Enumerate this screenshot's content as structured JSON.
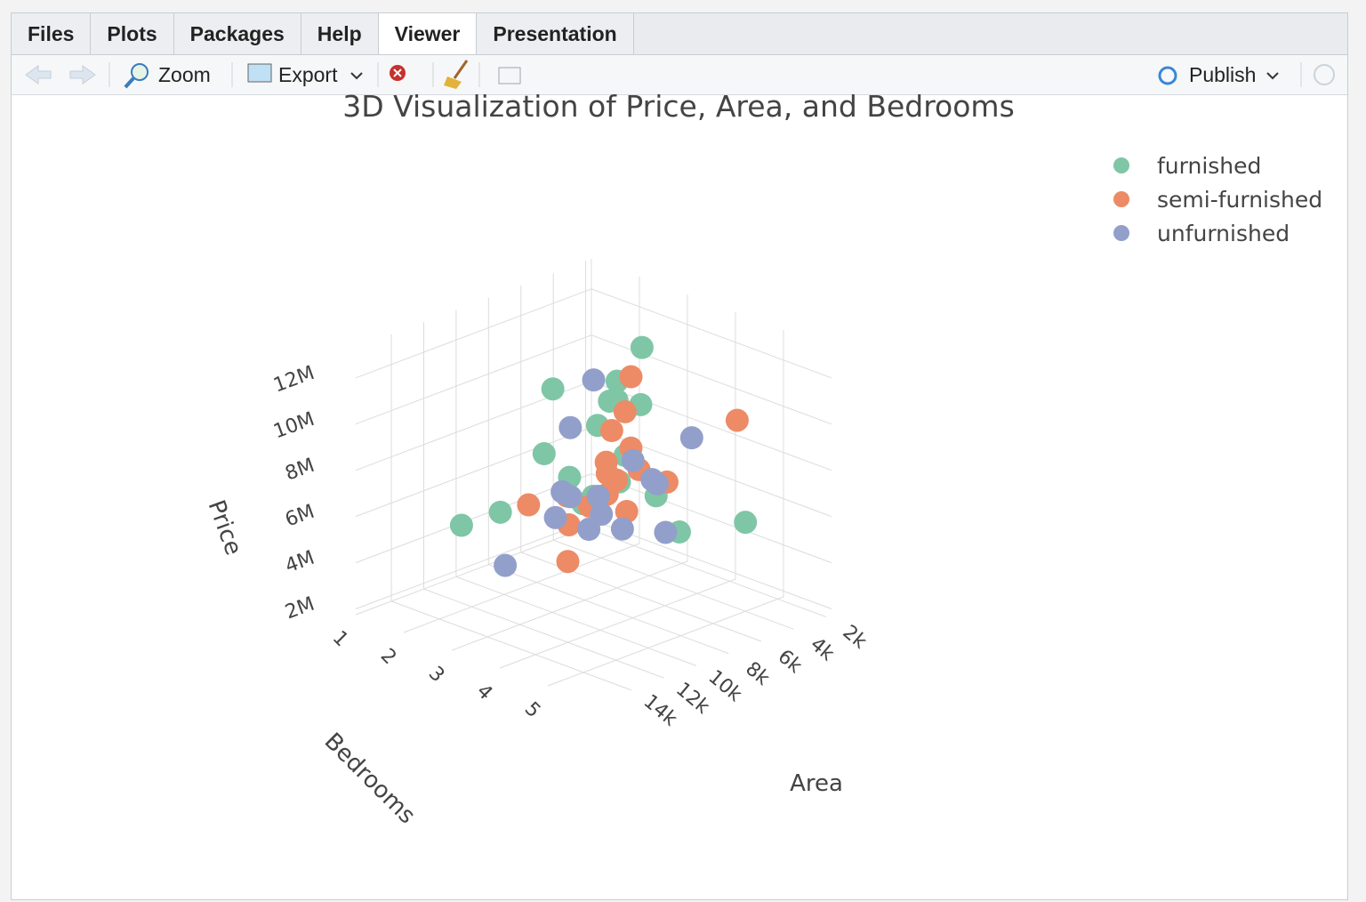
{
  "tabs": [
    "Files",
    "Plots",
    "Packages",
    "Help",
    "Viewer",
    "Presentation"
  ],
  "toolbar": {
    "zoom": "Zoom",
    "export": "Export",
    "publish": "Publish"
  },
  "chart_data": {
    "type": "scatter3d",
    "title": "3D Visualization of Price, Area, and Bedrooms",
    "xaxis_title": "Area",
    "yaxis_title": "Bedrooms",
    "zaxis_title": "Price",
    "xlim": [
      1650,
      16200
    ],
    "ylim": [
      1,
      6
    ],
    "zlim": [
      1750000,
      13300000
    ],
    "xticks": [
      {
        "value": 2000,
        "label": "2k"
      },
      {
        "value": 4000,
        "label": "4k"
      },
      {
        "value": 6000,
        "label": "6k"
      },
      {
        "value": 8000,
        "label": "8k"
      },
      {
        "value": 10000,
        "label": "10k"
      },
      {
        "value": 12000,
        "label": "12k"
      },
      {
        "value": 14000,
        "label": "14k"
      }
    ],
    "yticks": [
      1,
      2,
      3,
      4,
      5
    ],
    "zticks": [
      {
        "value": 2000000,
        "label": "2M"
      },
      {
        "value": 4000000,
        "label": "4M"
      },
      {
        "value": 6000000,
        "label": "6M"
      },
      {
        "value": 8000000,
        "label": "8M"
      },
      {
        "value": 10000000,
        "label": "10M"
      },
      {
        "value": 12000000,
        "label": "12M"
      }
    ],
    "grid": true,
    "series": [
      {
        "name": "furnished",
        "color": "#7fc6a6",
        "x": [
          7420,
          8960,
          9960,
          7500,
          6000,
          7200,
          3500,
          15600,
          13200,
          4000,
          6550,
          5500,
          3000,
          8100,
          4500,
          5850,
          10500,
          2145
        ],
        "y": [
          4,
          4,
          3,
          4,
          3,
          3,
          2,
          3,
          3,
          5,
          4,
          3,
          1,
          3,
          2,
          3,
          3,
          3
        ],
        "z": [
          13300000,
          12250000,
          11410000,
          10850000,
          9870000,
          9100000,
          8400000,
          7000000,
          6930000,
          5600000,
          6650000,
          7350000,
          4200000,
          5950000,
          4550000,
          6300000,
          8750000,
          3150000
        ]
      },
      {
        "name": "semi-furnished",
        "color": "#ec8b66",
        "x": [
          8100,
          4510,
          5500,
          6325,
          2175,
          11460,
          3700,
          5880,
          9000,
          6600,
          3640,
          12000,
          4640,
          7700,
          6000,
          3150,
          5400
        ],
        "y": [
          4,
          5,
          3,
          3,
          2,
          3,
          2,
          4,
          4,
          3,
          2,
          4,
          3,
          3,
          2,
          1,
          3
        ],
        "z": [
          12215000,
          10150000,
          9240000,
          8645000,
          6020000,
          6790000,
          5810000,
          7070000,
          7980000,
          6860000,
          4410000,
          5250000,
          6510000,
          5740000,
          3710000,
          3430000,
          4900000
        ]
      },
      {
        "name": "unfurnished",
        "color": "#929fca",
        "x": [
          7440,
          8880,
          4350,
          12900,
          6800,
          5010,
          3520,
          10700,
          9800,
          5900,
          4000,
          3000,
          6420,
          7160,
          2700
        ],
        "y": [
          3,
          3,
          4,
          3,
          4,
          3,
          3,
          4,
          3,
          2,
          2,
          3,
          2,
          3,
          2
        ],
        "z": [
          11130000,
          9450000,
          8580000,
          4550000,
          7420000,
          7000000,
          5600000,
          6300000,
          5800000,
          4900000,
          3640000,
          3360000,
          5250000,
          6020000,
          2660000
        ]
      }
    ]
  }
}
